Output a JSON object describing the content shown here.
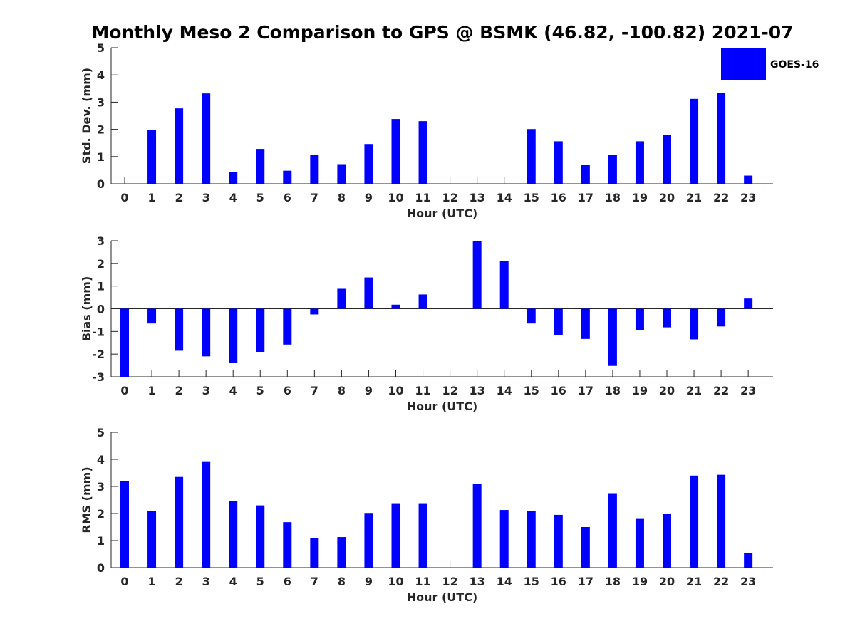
{
  "figure": {
    "title": "Monthly Meso 2 Comparison to GPS @ BSMK (46.82, -100.82) 2021-07"
  },
  "legend": {
    "label": "GOES-16",
    "color": "#0000ff"
  },
  "chart_data": [
    {
      "type": "bar",
      "xlabel": "Hour (UTC)",
      "ylabel": "Std. Dev. (mm)",
      "ylim": [
        0,
        5
      ],
      "yticks": [
        0,
        1,
        2,
        3,
        4,
        5
      ],
      "categories": [
        "0",
        "1",
        "2",
        "3",
        "4",
        "5",
        "6",
        "7",
        "8",
        "9",
        "10",
        "11",
        "12",
        "13",
        "14",
        "15",
        "16",
        "17",
        "18",
        "19",
        "20",
        "21",
        "22",
        "23"
      ],
      "series": [
        {
          "name": "GOES-16",
          "values": [
            0,
            1.97,
            2.77,
            3.32,
            0.43,
            1.28,
            0.48,
            1.07,
            0.72,
            1.46,
            2.38,
            2.3,
            0,
            0,
            0,
            2.01,
            1.56,
            0.7,
            1.07,
            1.56,
            1.8,
            3.12,
            3.35,
            0.3
          ]
        }
      ],
      "grid": false,
      "legend_position": "top-right"
    },
    {
      "type": "bar",
      "xlabel": "Hour (UTC)",
      "ylabel": "Bias (mm)",
      "ylim": [
        -3,
        3
      ],
      "yticks": [
        -3,
        -2,
        -1,
        0,
        1,
        2,
        3
      ],
      "categories": [
        "0",
        "1",
        "2",
        "3",
        "4",
        "5",
        "6",
        "7",
        "8",
        "9",
        "10",
        "11",
        "12",
        "13",
        "14",
        "15",
        "16",
        "17",
        "18",
        "19",
        "20",
        "21",
        "22",
        "23"
      ],
      "series": [
        {
          "name": "GOES-16",
          "values": [
            -3.0,
            -0.65,
            -1.85,
            -2.1,
            -2.4,
            -1.9,
            -1.58,
            -0.25,
            0.88,
            1.38,
            0.18,
            0.63,
            0,
            3.0,
            2.12,
            -0.65,
            -1.17,
            -1.33,
            -2.52,
            -0.95,
            -0.82,
            -1.35,
            -0.78,
            0.45
          ]
        }
      ],
      "grid": false
    },
    {
      "type": "bar",
      "xlabel": "Hour (UTC)",
      "ylabel": "RMS (mm)",
      "ylim": [
        0,
        5
      ],
      "yticks": [
        0,
        1,
        2,
        3,
        4,
        5
      ],
      "categories": [
        "0",
        "1",
        "2",
        "3",
        "4",
        "5",
        "6",
        "7",
        "8",
        "9",
        "10",
        "11",
        "12",
        "13",
        "14",
        "15",
        "16",
        "17",
        "18",
        "19",
        "20",
        "21",
        "22",
        "23"
      ],
      "series": [
        {
          "name": "GOES-16",
          "values": [
            3.2,
            2.1,
            3.35,
            3.93,
            2.47,
            2.3,
            1.68,
            1.1,
            1.13,
            2.02,
            2.38,
            2.38,
            0,
            3.1,
            2.13,
            2.1,
            1.95,
            1.5,
            2.75,
            1.8,
            2.0,
            3.4,
            3.43,
            0.53
          ]
        }
      ],
      "grid": false
    }
  ]
}
